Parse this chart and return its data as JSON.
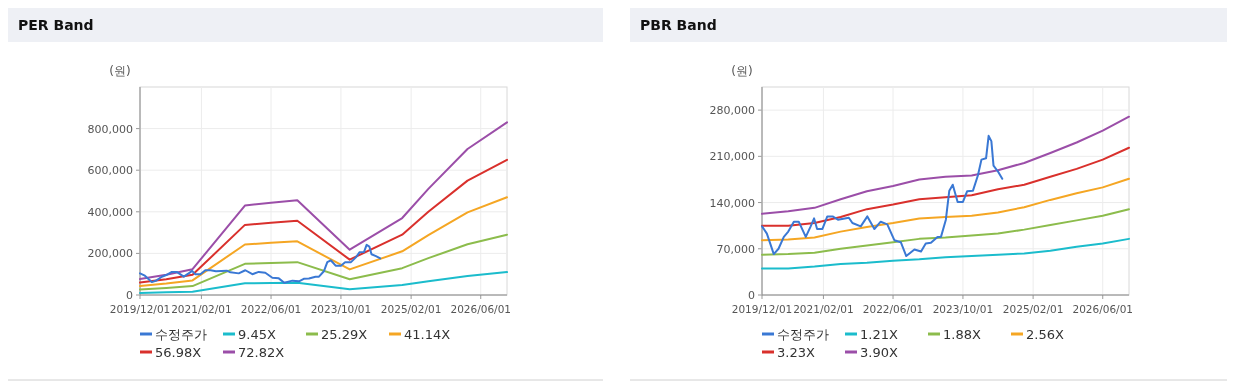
{
  "chart_data": [
    {
      "type": "line",
      "title": "PER Band",
      "ylabel": "(원)",
      "grid": true,
      "legend": "bottom",
      "marker": "none",
      "line_style": "solid",
      "xlim": [
        "2019-12-01",
        "2026-12-01"
      ],
      "ylim": [
        0,
        1000000
      ],
      "xticks": [
        {
          "value": "2019-12-01",
          "label": "2019/12/01"
        },
        {
          "value": "2021-02-01",
          "label": "2021/02/01"
        },
        {
          "value": "2022-06-01",
          "label": "2022/06/01"
        },
        {
          "value": "2023-10-01",
          "label": "2023/10/01"
        },
        {
          "value": "2025-02-01",
          "label": "2025/02/01"
        },
        {
          "value": "2026-06-01",
          "label": "2026/06/01"
        }
      ],
      "yticks": [
        0,
        {
          "value": 200000,
          "label": "200,000"
        },
        {
          "value": 400000,
          "label": "400,000"
        },
        {
          "value": 600000,
          "label": "600,000"
        },
        {
          "value": 800000,
          "label": "800,000"
        }
      ],
      "x": [
        "2019-12-01",
        "2020-06-01",
        "2020-12-01",
        "2021-12-01",
        "2022-06-01",
        "2022-12-01",
        "2023-12-01",
        "2024-12-01",
        "2025-06-01",
        "2026-03-01",
        "2026-12-01"
      ],
      "series": [
        {
          "name": "수정주가",
          "color": "#3a78d4",
          "x": [
            "2019-12-01",
            "2020-01-04",
            "2020-02-21",
            "2020-03-25",
            "2020-05-01",
            "2020-06-01",
            "2020-07-10",
            "2020-08-13",
            "2020-10-01",
            "2020-11-04",
            "2020-11-28",
            "2020-12-19",
            "2021-01-25",
            "2021-02-28",
            "2021-04-06",
            "2021-05-13",
            "2021-07-28",
            "2021-08-22",
            "2021-10-19",
            "2021-12-04",
            "2022-01-22",
            "2022-03-07",
            "2022-04-22",
            "2022-06-10",
            "2022-07-25",
            "2022-09-01",
            "2022-10-28",
            "2022-12-13",
            "2023-01-15",
            "2023-02-20",
            "2023-04-07",
            "2023-05-01",
            "2023-06-04",
            "2023-06-28",
            "2023-07-22",
            "2023-08-25",
            "2023-10-01",
            "2023-10-30",
            "2023-12-10",
            "2024-01-13",
            "2024-02-07",
            "2024-03-10",
            "2024-03-28",
            "2024-04-16",
            "2024-05-01",
            "2024-06-01",
            "2024-07-01"
          ],
          "values": [
            104000,
            93000,
            62000,
            70000,
            88000,
            96000,
            111000,
            111000,
            88000,
            104000,
            116000,
            100000,
            100000,
            119000,
            119000,
            114000,
            117000,
            109000,
            104000,
            119000,
            100000,
            111000,
            107000,
            83000,
            80000,
            59000,
            69000,
            66000,
            78000,
            79000,
            88000,
            88000,
            114000,
            158000,
            167000,
            141000,
            141000,
            157000,
            158000,
            181000,
            205000,
            207000,
            241000,
            233000,
            196000,
            187000,
            176000
          ]
        },
        {
          "name": "9.45X",
          "color": "#1bbccc",
          "values": [
            10000,
            13000,
            16000,
            56000,
            58000,
            59000,
            28000,
            48000,
            66000,
            91000,
            110000
          ]
        },
        {
          "name": "25.29X",
          "color": "#8cbc4c",
          "values": [
            27000,
            34000,
            43000,
            150000,
            154000,
            158000,
            76000,
            129000,
            177000,
            244000,
            290000
          ]
        },
        {
          "name": "41.14X",
          "color": "#f5a623",
          "values": [
            43000,
            55000,
            70000,
            243000,
            251000,
            258000,
            123000,
            210000,
            288000,
            397000,
            470000
          ]
        },
        {
          "name": "56.98X",
          "color": "#d9302c",
          "values": [
            60000,
            76000,
            97000,
            337000,
            347000,
            357000,
            170000,
            290000,
            400000,
            550000,
            650000
          ]
        },
        {
          "name": "72.82X",
          "color": "#9b4ea8",
          "values": [
            77000,
            97000,
            124000,
            430000,
            444000,
            456000,
            218000,
            370000,
            510000,
            702000,
            830000
          ]
        }
      ]
    },
    {
      "type": "line",
      "title": "PBR Band",
      "ylabel": "(원)",
      "grid": true,
      "legend": "bottom",
      "marker": "none",
      "line_style": "solid",
      "xlim": [
        "2019-12-01",
        "2026-12-01"
      ],
      "ylim": [
        0,
        315000
      ],
      "xticks": [
        {
          "value": "2019-12-01",
          "label": "2019/12/01"
        },
        {
          "value": "2021-02-01",
          "label": "2021/02/01"
        },
        {
          "value": "2022-06-01",
          "label": "2022/06/01"
        },
        {
          "value": "2023-10-01",
          "label": "2023/10/01"
        },
        {
          "value": "2025-02-01",
          "label": "2025/02/01"
        },
        {
          "value": "2026-06-01",
          "label": "2026/06/01"
        }
      ],
      "yticks": [
        0,
        {
          "value": 70000,
          "label": "70,000"
        },
        {
          "value": 140000,
          "label": "140,000"
        },
        {
          "value": 210000,
          "label": "210,000"
        },
        {
          "value": 280000,
          "label": "280,000"
        }
      ],
      "x": [
        "2019-12-01",
        "2020-06-01",
        "2020-12-01",
        "2021-06-01",
        "2021-12-01",
        "2022-06-01",
        "2022-12-01",
        "2023-06-01",
        "2023-12-01",
        "2024-06-01",
        "2024-12-01",
        "2025-06-01",
        "2025-12-01",
        "2026-06-01",
        "2026-12-01"
      ],
      "series": [
        {
          "name": "수정주가",
          "color": "#3a78d4",
          "x": [
            "2019-12-01",
            "2020-01-04",
            "2020-02-21",
            "2020-03-25",
            "2020-05-01",
            "2020-06-01",
            "2020-07-10",
            "2020-08-13",
            "2020-10-01",
            "2020-11-04",
            "2020-11-28",
            "2020-12-19",
            "2021-01-25",
            "2021-02-28",
            "2021-04-06",
            "2021-05-13",
            "2021-07-28",
            "2021-08-22",
            "2021-10-19",
            "2021-12-04",
            "2022-01-22",
            "2022-03-07",
            "2022-04-22",
            "2022-06-10",
            "2022-07-25",
            "2022-09-01",
            "2022-10-28",
            "2022-12-13",
            "2023-01-15",
            "2023-02-20",
            "2023-04-07",
            "2023-05-01",
            "2023-06-04",
            "2023-06-28",
            "2023-07-22",
            "2023-08-25",
            "2023-10-01",
            "2023-10-30",
            "2023-12-10",
            "2024-01-13",
            "2024-02-07",
            "2024-03-10",
            "2024-03-28",
            "2024-04-16",
            "2024-05-01",
            "2024-06-01",
            "2024-07-01"
          ],
          "values": [
            104000,
            93000,
            62000,
            70000,
            88000,
            96000,
            111000,
            111000,
            88000,
            104000,
            116000,
            100000,
            100000,
            119000,
            119000,
            114000,
            117000,
            109000,
            104000,
            119000,
            100000,
            111000,
            107000,
            83000,
            80000,
            59000,
            69000,
            66000,
            78000,
            79000,
            88000,
            88000,
            114000,
            158000,
            167000,
            141000,
            141000,
            157000,
            158000,
            181000,
            205000,
            207000,
            241000,
            233000,
            196000,
            187000,
            176000
          ]
        },
        {
          "name": "1.21X",
          "color": "#1bbccc",
          "values": [
            40000,
            40000,
            43000,
            47000,
            49000,
            52000,
            54000,
            57000,
            59000,
            61000,
            63000,
            67000,
            73000,
            78000,
            85000
          ]
        },
        {
          "name": "1.88X",
          "color": "#8cbc4c",
          "values": [
            61000,
            62000,
            64000,
            70000,
            75000,
            80000,
            85000,
            87000,
            90000,
            93000,
            99000,
            106000,
            113000,
            120000,
            130000
          ]
        },
        {
          "name": "2.56X",
          "color": "#f5a623",
          "values": [
            83000,
            84000,
            87000,
            96000,
            103000,
            109000,
            116000,
            118000,
            120000,
            125000,
            133000,
            144000,
            154000,
            163000,
            176000
          ]
        },
        {
          "name": "3.23X",
          "color": "#d9302c",
          "values": [
            105000,
            105000,
            109000,
            118000,
            130000,
            137000,
            145000,
            148000,
            151000,
            160000,
            167000,
            179000,
            191000,
            205000,
            223000
          ]
        },
        {
          "name": "3.90X",
          "color": "#9b4ea8",
          "values": [
            123000,
            127000,
            132000,
            145000,
            157000,
            165000,
            175000,
            179000,
            181000,
            189000,
            200000,
            215000,
            231000,
            249000,
            270000
          ]
        }
      ]
    }
  ]
}
